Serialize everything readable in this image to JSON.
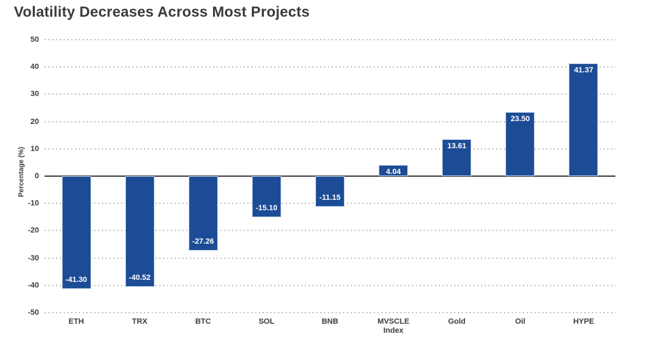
{
  "page_title": "Volatility Decreases Across Most Projects",
  "chart_data": {
    "type": "bar",
    "title": "Volatility Decreases Across Most Projects",
    "categories": [
      "ETH",
      "TRX",
      "BTC",
      "SOL",
      "BNB",
      "MVSCLE\nIndex",
      "Gold",
      "Oil",
      "HYPE"
    ],
    "values": [
      -41.3,
      -40.52,
      -27.26,
      -15.1,
      -11.15,
      4.04,
      13.61,
      23.5,
      41.37
    ],
    "value_labels": [
      "-41.30",
      "-40.52",
      "-27.26",
      "-15.10",
      "-11.15",
      "4.04",
      "13.61",
      "23.50",
      "41.37"
    ],
    "xlabel": "",
    "ylabel": "Percentage (%)",
    "ylim": [
      -50,
      50
    ],
    "yticks": [
      50,
      40,
      30,
      20,
      10,
      0,
      -10,
      -20,
      -30,
      -40,
      -50
    ],
    "grid": "horizontal-dotted",
    "legend": "none",
    "colors": {
      "bar": "#1c4c96",
      "bar_border": "#b7cbe4",
      "bar_label": "#ffffff",
      "grid": "#b6b6b6",
      "zero_line": "#4a4a4a",
      "axis_text": "#3d3d3d",
      "title": "#3a3a3a",
      "background": "#ffffff"
    }
  }
}
